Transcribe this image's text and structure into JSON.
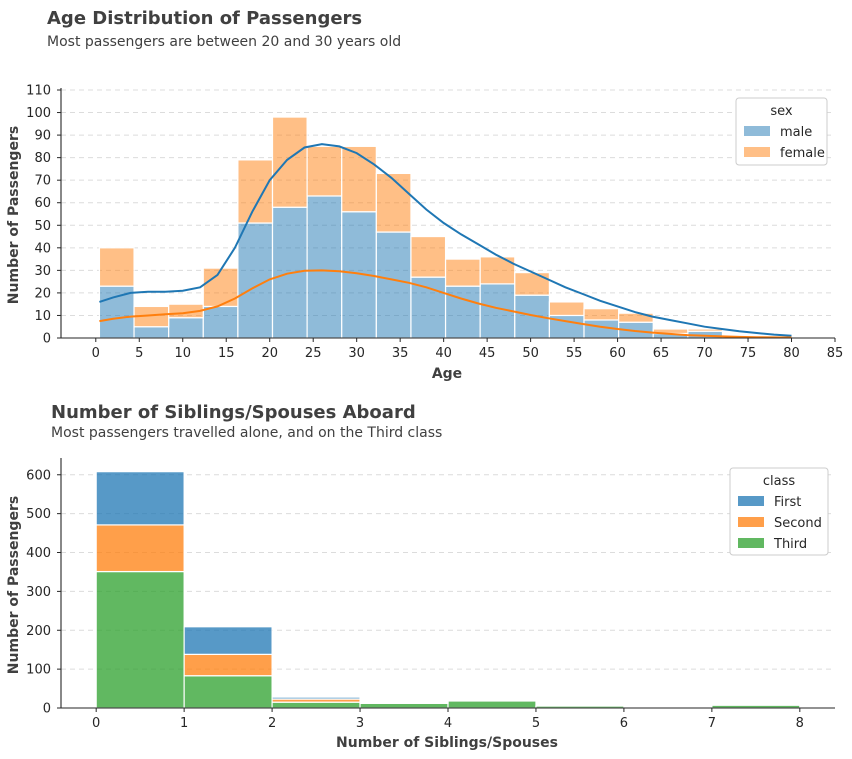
{
  "chart_data": [
    {
      "type": "bar",
      "subtype": "stacked-histogram-with-kde",
      "title": "Age Distribution of Passengers",
      "subtitle": "Most passengers are between 20 and 30 years old",
      "xlabel": "Age",
      "ylabel": "Number of Passengers",
      "xlim": [
        -4,
        85
      ],
      "ylim": [
        0,
        110
      ],
      "xticks": [
        "0",
        "5",
        "10",
        "15",
        "20",
        "25",
        "30",
        "35",
        "40",
        "45",
        "50",
        "55",
        "60",
        "65",
        "70",
        "75",
        "80",
        "85"
      ],
      "yticks": [
        "0",
        "10",
        "20",
        "30",
        "40",
        "50",
        "60",
        "70",
        "80",
        "90",
        "100",
        "110"
      ],
      "grid": "y-dashed",
      "legend": {
        "title": "sex",
        "placement": "top-right",
        "entries": [
          "male",
          "female"
        ]
      },
      "bin_edges": [
        0.42,
        4.4,
        8.38,
        12.36,
        16.34,
        20.32,
        24.3,
        28.28,
        32.26,
        36.24,
        40.22,
        44.2,
        48.18,
        52.16,
        56.14,
        60.12,
        64.1,
        68.08,
        72.06,
        76.04,
        80.0
      ],
      "series": [
        {
          "name": "male",
          "color": "#1f77b4",
          "values": [
            23,
            5,
            9,
            14,
            51,
            58,
            63,
            56,
            47,
            27,
            23,
            24,
            19,
            10,
            8,
            7,
            2,
            3,
            0,
            0
          ]
        },
        {
          "name": "female",
          "color": "#ff7f0e",
          "values": [
            17,
            9,
            6,
            17,
            28,
            40,
            22,
            29,
            26,
            18,
            12,
            12,
            10,
            6,
            5,
            4,
            2,
            1,
            0,
            0
          ]
        }
      ],
      "kde": [
        {
          "name": "male",
          "color": "#1f77b4",
          "x": [
            0.42,
            2,
            4,
            6,
            8,
            10,
            12,
            14,
            16,
            18,
            20,
            22,
            24,
            26,
            28,
            30,
            32,
            34,
            36,
            38,
            40,
            42,
            44,
            46,
            48,
            50,
            52,
            54,
            56,
            58,
            60,
            62,
            64,
            66,
            68,
            70,
            72,
            74,
            76,
            78,
            80
          ],
          "y": [
            16,
            18,
            20,
            20.5,
            20.5,
            21,
            22.5,
            28,
            40,
            56,
            70,
            79,
            84.5,
            86,
            85,
            82,
            77,
            71,
            64,
            57,
            51,
            46,
            41.5,
            37,
            33,
            29.5,
            26,
            22.5,
            19.5,
            16.5,
            14,
            11.5,
            9.5,
            8,
            6.5,
            5,
            4,
            3,
            2.2,
            1.5,
            1
          ]
        },
        {
          "name": "female",
          "color": "#ff7f0e",
          "x": [
            0.42,
            2,
            4,
            6,
            8,
            10,
            12,
            14,
            16,
            18,
            20,
            22,
            24,
            26,
            28,
            30,
            32,
            34,
            36,
            38,
            40,
            42,
            44,
            46,
            48,
            50,
            52,
            54,
            56,
            58,
            60,
            62,
            64,
            66,
            68,
            70,
            72,
            74,
            76,
            78,
            80
          ],
          "y": [
            7.5,
            8.5,
            9.5,
            10,
            10.5,
            11,
            12,
            14,
            17.5,
            22,
            26,
            28.5,
            29.8,
            30,
            29.6,
            28.7,
            27.5,
            26,
            24.5,
            22.5,
            20,
            17.5,
            15.3,
            13.4,
            11.8,
            10.2,
            8.8,
            7.5,
            6.2,
            5,
            4,
            3.1,
            2.4,
            1.8,
            1.3,
            1,
            0.7,
            0.5,
            0.35,
            0.25,
            0.2
          ]
        }
      ]
    },
    {
      "type": "bar",
      "subtype": "stacked-histogram",
      "title": "Number of Siblings/Spouses Aboard",
      "subtitle": "Most passengers travelled alone, and on the Third class",
      "xlabel": "Number of Siblings/Spouses",
      "ylabel": "Number of Passengers",
      "xlim": [
        -0.4,
        8.4
      ],
      "ylim": [
        0,
        638
      ],
      "xticks": [
        "0",
        "1",
        "2",
        "3",
        "4",
        "5",
        "6",
        "7",
        "8"
      ],
      "yticks": [
        "0",
        "100",
        "200",
        "300",
        "400",
        "500",
        "600"
      ],
      "grid": "y-dashed",
      "legend": {
        "title": "class",
        "placement": "top-right",
        "entries": [
          "First",
          "Second",
          "Third"
        ]
      },
      "bin_edges": [
        0,
        1,
        2,
        3,
        4,
        5,
        6,
        7,
        8
      ],
      "series": [
        {
          "name": "Third",
          "color": "#2ca02c",
          "values": [
            351,
            83,
            15,
            12,
            18,
            5,
            0,
            7
          ]
        },
        {
          "name": "Second",
          "color": "#ff7f0e",
          "values": [
            120,
            55,
            8,
            1,
            0,
            0,
            0,
            0
          ]
        },
        {
          "name": "First",
          "color": "#1f77b4",
          "values": [
            137,
            71,
            5,
            3,
            0,
            0,
            0,
            0
          ]
        }
      ]
    }
  ]
}
